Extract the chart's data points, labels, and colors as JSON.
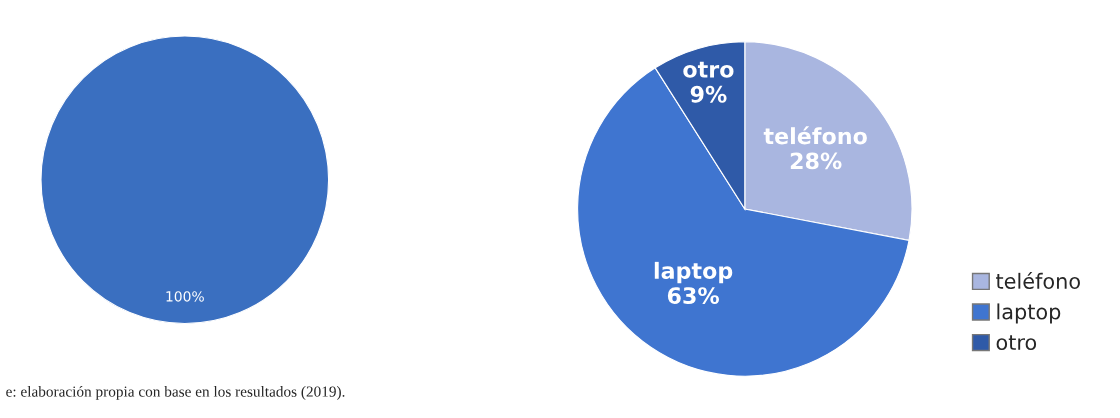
{
  "chart_data": [
    {
      "type": "pie",
      "categories": [
        null
      ],
      "values": [
        100
      ],
      "colors": [
        "#3a6fc0"
      ],
      "value_labels": [
        "100%"
      ],
      "legend": false,
      "annotations": [
        "e: elaboración propia con base en los resultados (2019)."
      ]
    },
    {
      "type": "pie",
      "categories": [
        "teléfono",
        "laptop",
        "otro"
      ],
      "values": [
        28,
        63,
        9
      ],
      "colors": [
        "#a9b6e0",
        "#3f75d0",
        "#2f5aa8"
      ],
      "value_labels": [
        "28%",
        "63%",
        "9%"
      ],
      "legend": "right"
    }
  ]
}
